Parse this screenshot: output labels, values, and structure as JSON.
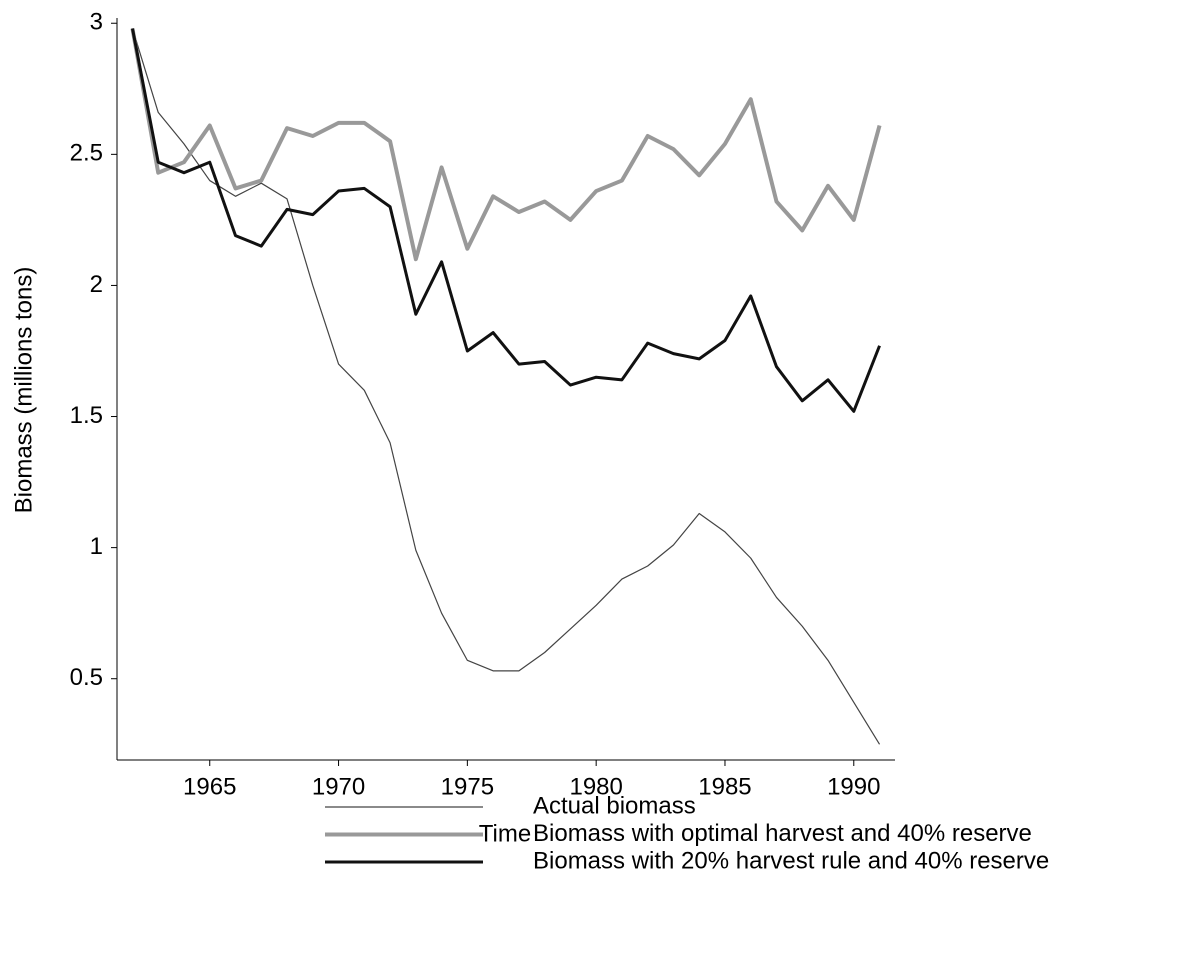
{
  "chart_data": {
    "type": "line",
    "x_label": "Time",
    "y_label": "Biomass (millions tons)",
    "x": [
      1962,
      1963,
      1964,
      1965,
      1966,
      1967,
      1968,
      1969,
      1970,
      1971,
      1972,
      1973,
      1974,
      1975,
      1976,
      1977,
      1978,
      1979,
      1980,
      1981,
      1982,
      1983,
      1984,
      1985,
      1986,
      1987,
      1988,
      1989,
      1990,
      1991
    ],
    "series": [
      {
        "name": "Actual biomass",
        "color": "#444444",
        "line_width": 1.2,
        "values": [
          2.98,
          2.66,
          2.54,
          2.4,
          2.34,
          2.39,
          2.33,
          2.0,
          1.7,
          1.6,
          1.4,
          0.99,
          0.75,
          0.57,
          0.53,
          0.53,
          0.6,
          0.69,
          0.78,
          0.88,
          0.93,
          1.01,
          1.13,
          1.06,
          0.96,
          0.81,
          0.7,
          0.57,
          0.41,
          0.25
        ]
      },
      {
        "name": "Biomass with optimal harvest and 40% reserve",
        "color": "#999999",
        "line_width": 4,
        "values": [
          2.98,
          2.43,
          2.47,
          2.61,
          2.37,
          2.4,
          2.6,
          2.57,
          2.62,
          2.62,
          2.55,
          2.1,
          2.45,
          2.14,
          2.34,
          2.28,
          2.32,
          2.25,
          2.36,
          2.4,
          2.57,
          2.52,
          2.42,
          2.54,
          2.71,
          2.32,
          2.21,
          2.38,
          2.25,
          2.61
        ]
      },
      {
        "name": "Biomass with 20% harvest rule and 40% reserve",
        "color": "#111111",
        "line_width": 3,
        "values": [
          2.98,
          2.47,
          2.43,
          2.47,
          2.19,
          2.15,
          2.29,
          2.27,
          2.36,
          2.37,
          2.3,
          1.89,
          2.09,
          1.75,
          1.82,
          1.7,
          1.71,
          1.62,
          1.65,
          1.64,
          1.78,
          1.74,
          1.72,
          1.79,
          1.96,
          1.69,
          1.56,
          1.64,
          1.52,
          1.77
        ]
      }
    ],
    "xlim": [
      1961.4,
      1991.6
    ],
    "xticks": [
      1965,
      1970,
      1975,
      1980,
      1985,
      1990
    ],
    "ylim": [
      0.19,
      3.02
    ],
    "yticks": [
      0.5,
      1,
      1.5,
      2,
      2.5,
      3
    ],
    "legend": "bottom"
  }
}
